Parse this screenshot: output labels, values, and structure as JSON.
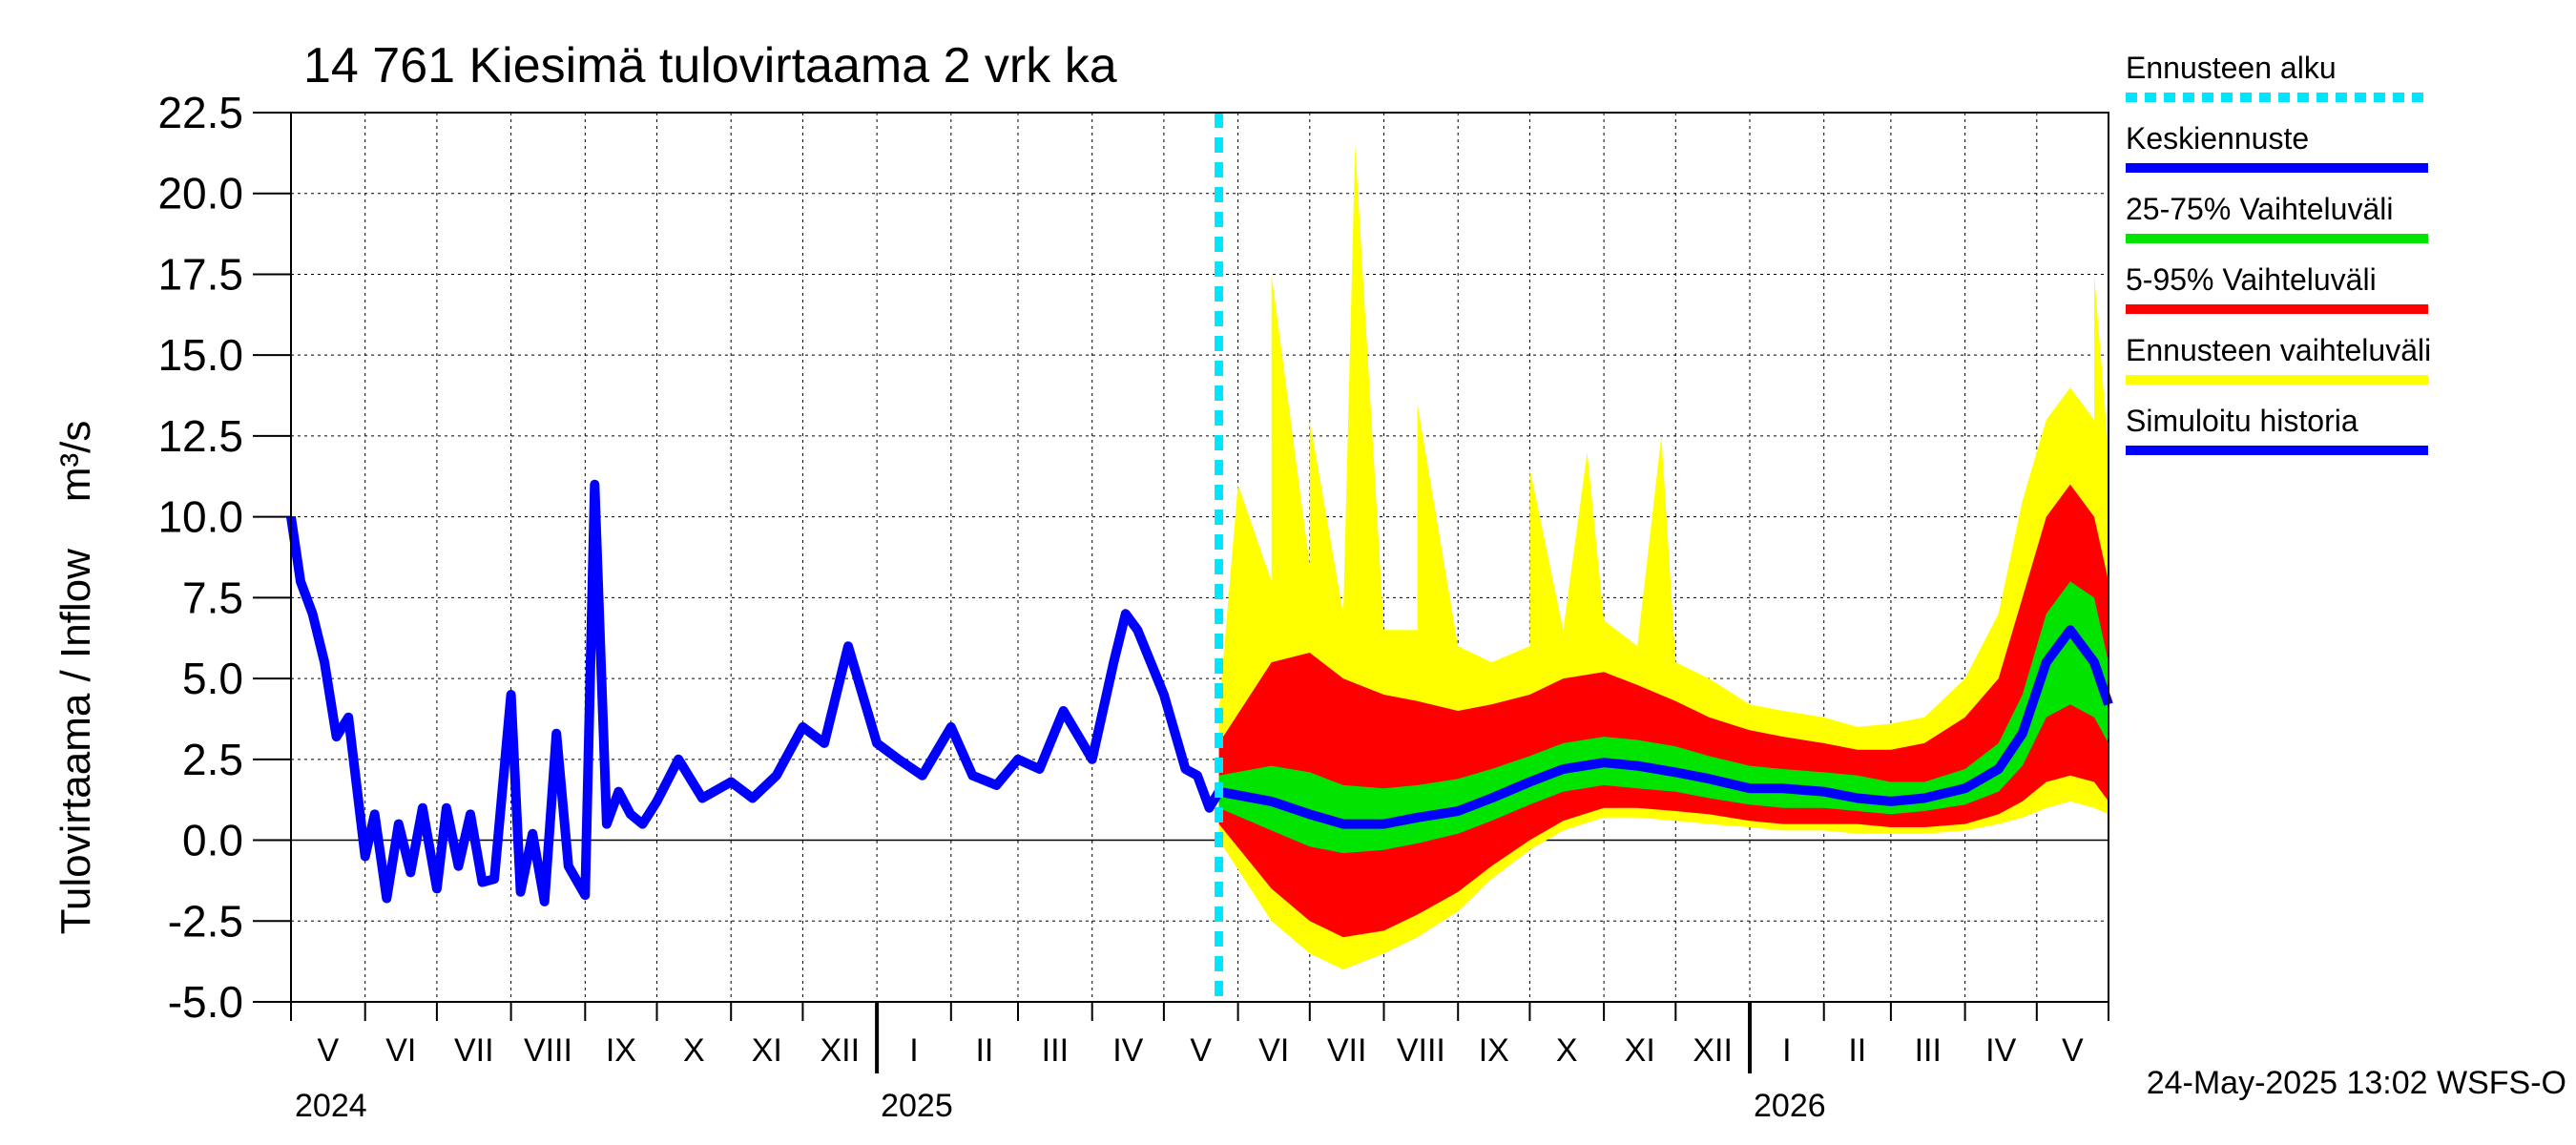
{
  "chart_data": {
    "type": "area",
    "title": "14 761 Kiesimä tulovirtaama 2 vrk ka",
    "ylabel": "Tulovirtaama / Inflow    m³/s",
    "ylim": [
      -5.0,
      22.5
    ],
    "yticks": [
      "22.5",
      "20.0",
      "17.5",
      "15.0",
      "12.5",
      "10.0",
      "7.5",
      "5.0",
      "2.5",
      "0.0",
      "-2.5",
      "-5.0"
    ],
    "ytick_values": [
      22.5,
      20.0,
      17.5,
      15.0,
      12.5,
      10.0,
      7.5,
      5.0,
      2.5,
      0.0,
      -2.5,
      -5.0
    ],
    "x_start": "2024-05-01",
    "x_end": "2026-05-31",
    "forecast_start": "2025-05-24",
    "months": [
      "V",
      "VI",
      "VII",
      "VIII",
      "IX",
      "X",
      "XI",
      "XII",
      "I",
      "II",
      "III",
      "IV",
      "V",
      "VI",
      "VII",
      "VIII",
      "IX",
      "X",
      "XI",
      "XII",
      "I",
      "II",
      "III",
      "IV",
      "V"
    ],
    "years": [
      "2024",
      "2025",
      "2026"
    ],
    "grid": true,
    "legend_position": "right",
    "footer": "24-May-2025 13:02 WSFS-O",
    "legend": [
      {
        "label": "Ennusteen alku",
        "color": "#00e5ff",
        "style": "dashed"
      },
      {
        "label": "Keskiennuste",
        "color": "#0000ff",
        "style": "solid"
      },
      {
        "label": "25-75% Vaihteluväli",
        "color": "#00e400",
        "style": "solid"
      },
      {
        "label": "5-95% Vaihteluväli",
        "color": "#ff0000",
        "style": "solid"
      },
      {
        "label": "Ennusteen vaihteluväli",
        "color": "#ffff00",
        "style": "solid"
      },
      {
        "label": "Simuloitu historia",
        "color": "#0000ff",
        "style": "solid"
      }
    ],
    "history": {
      "name": "Simuloitu historia",
      "x": [
        "2024-05-01",
        "2024-05-05",
        "2024-05-10",
        "2024-05-15",
        "2024-05-20",
        "2024-05-25",
        "2024-06-01",
        "2024-06-05",
        "2024-06-10",
        "2024-06-15",
        "2024-06-20",
        "2024-06-25",
        "2024-07-01",
        "2024-07-05",
        "2024-07-10",
        "2024-07-15",
        "2024-07-20",
        "2024-07-25",
        "2024-08-01",
        "2024-08-05",
        "2024-08-10",
        "2024-08-15",
        "2024-08-20",
        "2024-08-25",
        "2024-09-01",
        "2024-09-05",
        "2024-09-10",
        "2024-09-15",
        "2024-09-20",
        "2024-09-25",
        "2024-10-01",
        "2024-10-10",
        "2024-10-20",
        "2024-11-01",
        "2024-11-10",
        "2024-11-20",
        "2024-12-01",
        "2024-12-10",
        "2024-12-20",
        "2025-01-01",
        "2025-01-10",
        "2025-01-20",
        "2025-02-01",
        "2025-02-10",
        "2025-02-20",
        "2025-03-01",
        "2025-03-10",
        "2025-03-20",
        "2025-04-01",
        "2025-04-10",
        "2025-04-15",
        "2025-04-20",
        "2025-05-01",
        "2025-05-10",
        "2025-05-15",
        "2025-05-20",
        "2025-05-24"
      ],
      "y": [
        10.0,
        8.0,
        7.0,
        5.5,
        3.2,
        3.8,
        -0.5,
        0.8,
        -1.8,
        0.5,
        -1.0,
        1.0,
        -1.5,
        1.0,
        -0.8,
        0.8,
        -1.3,
        -1.2,
        4.5,
        -1.6,
        0.2,
        -1.9,
        3.3,
        -0.8,
        -1.7,
        11.0,
        0.5,
        1.5,
        0.8,
        0.5,
        1.2,
        2.5,
        1.3,
        1.8,
        1.3,
        2.0,
        3.5,
        3.0,
        6.0,
        3.0,
        2.5,
        2.0,
        3.5,
        2.0,
        1.7,
        2.5,
        2.2,
        4.0,
        2.5,
        5.5,
        7.0,
        6.5,
        4.5,
        2.2,
        2.0,
        1.0,
        1.5
      ]
    },
    "forecast": {
      "x": [
        "2025-05-24",
        "2025-06-15",
        "2025-07-01",
        "2025-07-15",
        "2025-08-01",
        "2025-08-15",
        "2025-09-01",
        "2025-09-15",
        "2025-10-01",
        "2025-10-15",
        "2025-11-01",
        "2025-11-15",
        "2025-12-01",
        "2025-12-15",
        "2026-01-01",
        "2026-01-15",
        "2026-02-01",
        "2026-02-15",
        "2026-03-01",
        "2026-03-15",
        "2026-04-01",
        "2026-04-15",
        "2026-04-25",
        "2026-05-05",
        "2026-05-15",
        "2026-05-25",
        "2026-05-31"
      ],
      "median": [
        1.5,
        1.2,
        0.8,
        0.5,
        0.5,
        0.7,
        0.9,
        1.3,
        1.8,
        2.2,
        2.4,
        2.3,
        2.1,
        1.9,
        1.6,
        1.6,
        1.5,
        1.3,
        1.2,
        1.3,
        1.6,
        2.2,
        3.3,
        5.5,
        6.5,
        5.5,
        4.2
      ],
      "q25": [
        1.0,
        0.3,
        -0.2,
        -0.4,
        -0.3,
        -0.1,
        0.2,
        0.6,
        1.1,
        1.5,
        1.7,
        1.6,
        1.5,
        1.3,
        1.1,
        1.0,
        1.0,
        0.9,
        0.8,
        0.9,
        1.1,
        1.5,
        2.3,
        3.8,
        4.2,
        3.8,
        3.0
      ],
      "q75": [
        2.0,
        2.3,
        2.1,
        1.7,
        1.6,
        1.7,
        1.9,
        2.2,
        2.6,
        3.0,
        3.2,
        3.1,
        2.9,
        2.6,
        2.3,
        2.2,
        2.1,
        2.0,
        1.8,
        1.8,
        2.2,
        3.0,
        4.5,
        7.0,
        8.0,
        7.5,
        5.5
      ],
      "p05": [
        0.5,
        -1.5,
        -2.5,
        -3.0,
        -2.8,
        -2.3,
        -1.6,
        -0.8,
        0.0,
        0.6,
        1.0,
        1.0,
        0.9,
        0.8,
        0.6,
        0.5,
        0.5,
        0.5,
        0.4,
        0.4,
        0.5,
        0.8,
        1.2,
        1.8,
        2.0,
        1.8,
        1.2
      ],
      "p95": [
        3.0,
        5.5,
        5.8,
        5.0,
        4.5,
        4.3,
        4.0,
        4.2,
        4.5,
        5.0,
        5.2,
        4.8,
        4.3,
        3.8,
        3.4,
        3.2,
        3.0,
        2.8,
        2.8,
        3.0,
        3.8,
        5.0,
        7.5,
        10.0,
        11.0,
        10.0,
        8.0
      ],
      "min": [
        0.0,
        -2.5,
        -3.5,
        -4.0,
        -3.5,
        -3.0,
        -2.2,
        -1.2,
        -0.3,
        0.3,
        0.7,
        0.7,
        0.6,
        0.5,
        0.4,
        0.3,
        0.3,
        0.2,
        0.2,
        0.2,
        0.3,
        0.5,
        0.7,
        1.0,
        1.2,
        1.0,
        0.8
      ],
      "max": [
        4.0,
        8.0,
        8.5,
        7.0,
        6.5,
        6.5,
        6.0,
        5.5,
        6.0,
        6.5,
        6.8,
        6.0,
        5.5,
        5.0,
        4.2,
        4.0,
        3.8,
        3.5,
        3.6,
        3.8,
        5.0,
        7.0,
        10.5,
        13.0,
        14.0,
        13.0,
        12.0
      ],
      "spikes": [
        [
          "2025-06-01",
          11.0
        ],
        [
          "2025-06-15",
          17.5
        ],
        [
          "2025-07-01",
          13.0
        ],
        [
          "2025-07-20",
          21.5
        ],
        [
          "2025-08-15",
          13.5
        ],
        [
          "2025-10-01",
          11.5
        ],
        [
          "2025-10-25",
          12.0
        ],
        [
          "2025-11-25",
          12.5
        ],
        [
          "2026-05-25",
          17.5
        ]
      ]
    }
  }
}
